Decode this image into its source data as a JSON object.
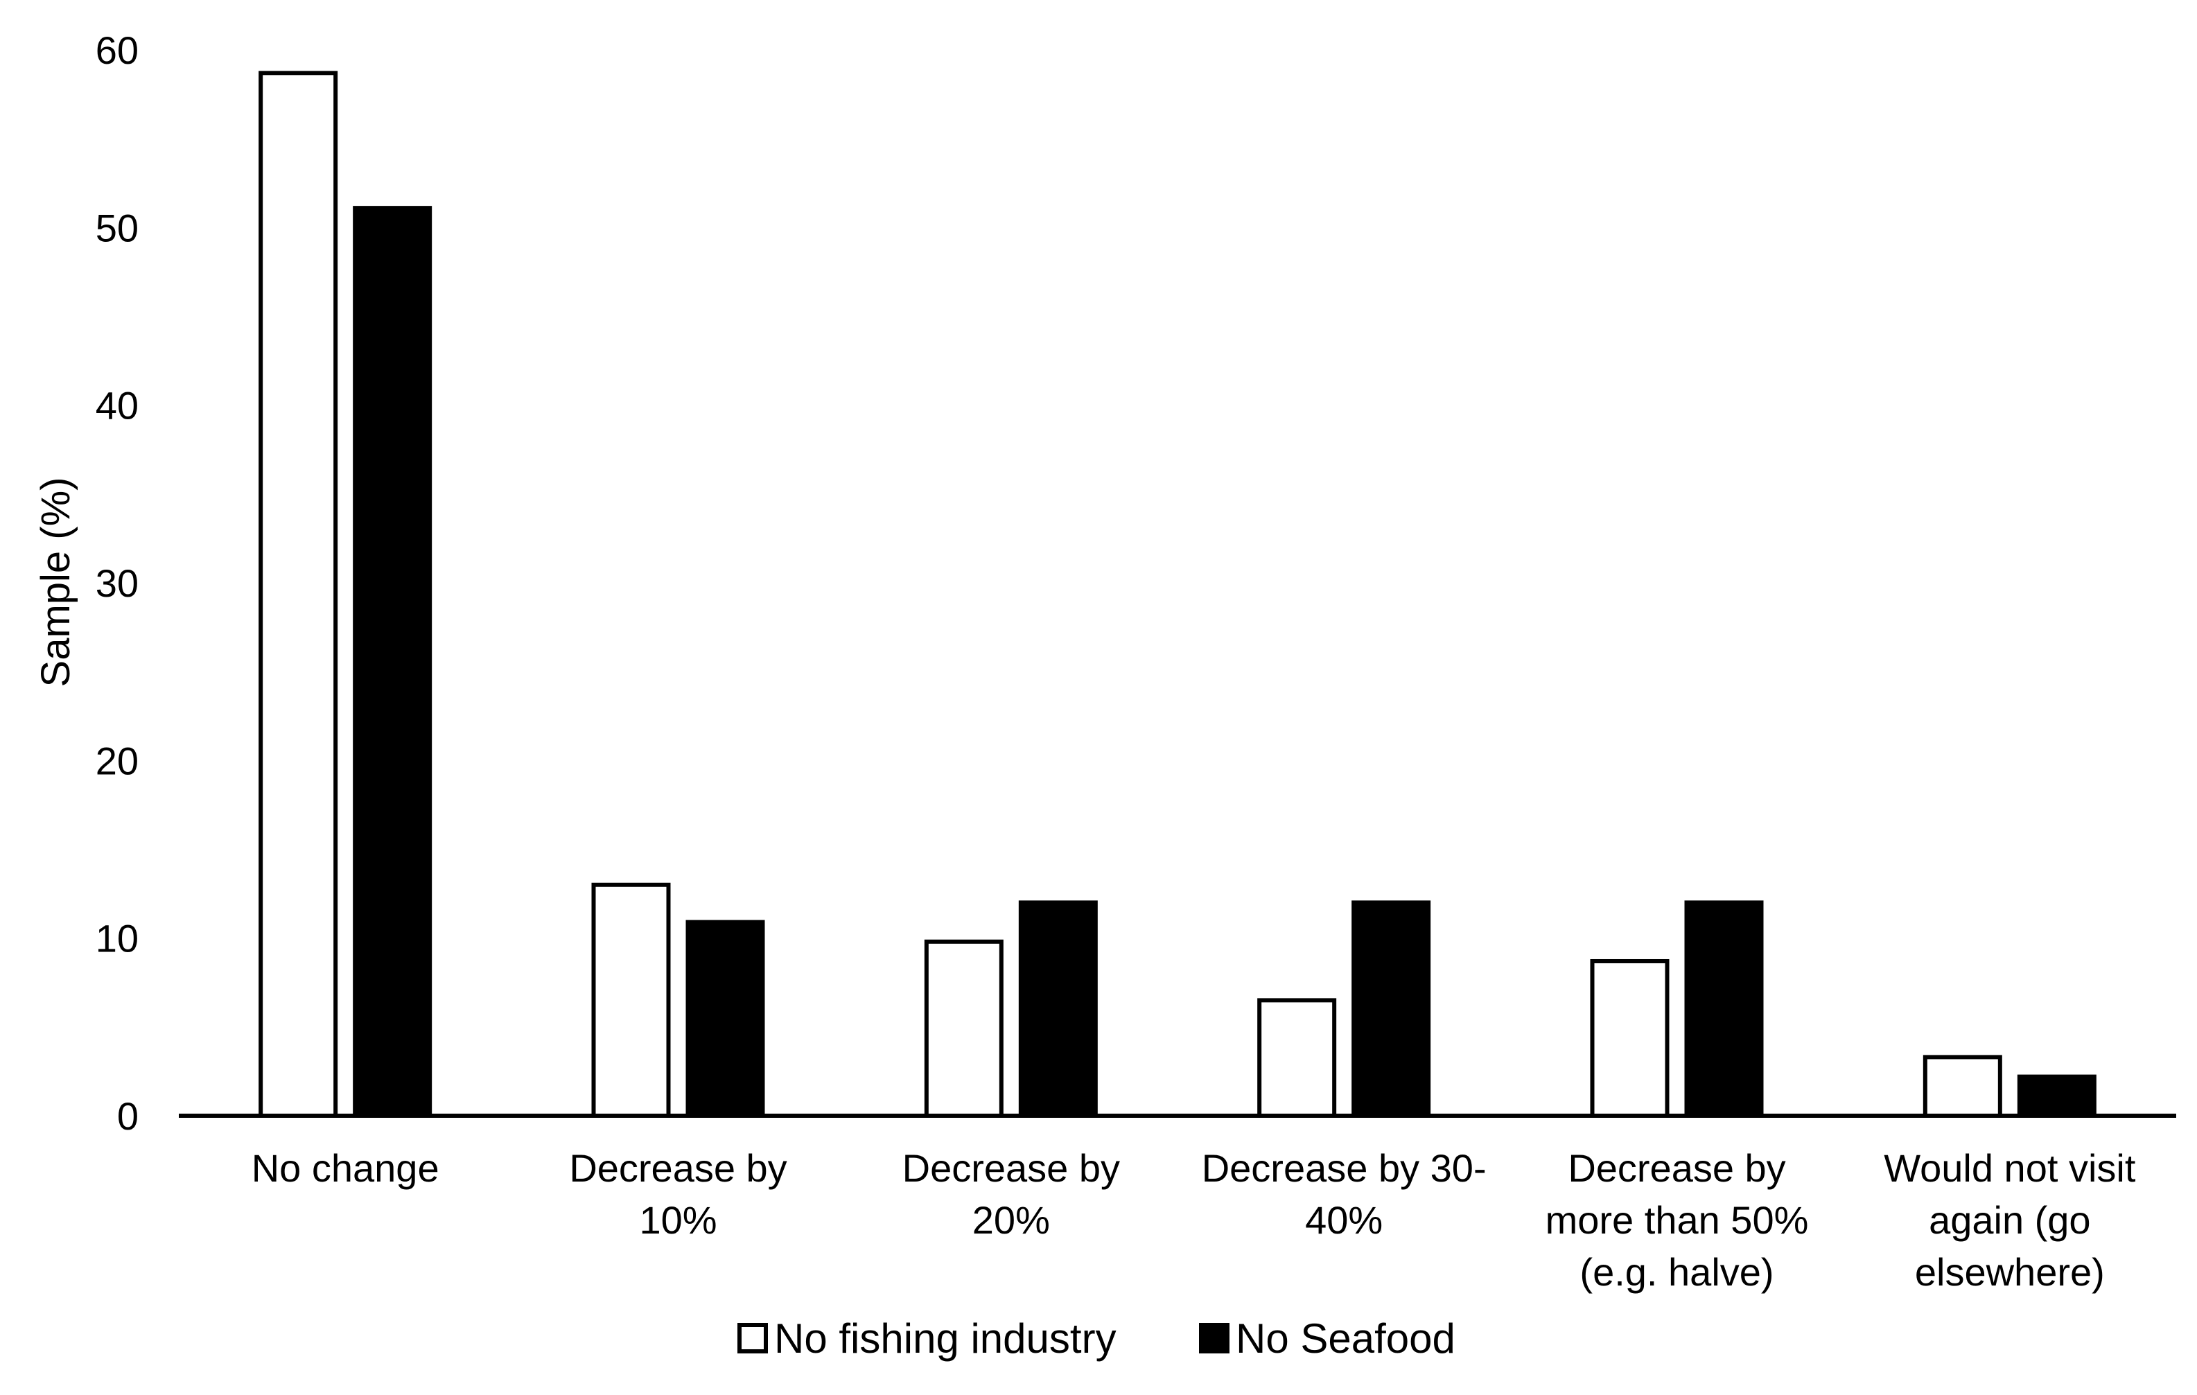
{
  "chart_data": {
    "type": "bar",
    "title": "",
    "xlabel": "",
    "ylabel": "Sample (%)",
    "ylim": [
      0,
      60
    ],
    "yticks": [
      0,
      10,
      20,
      30,
      40,
      50,
      60
    ],
    "grid": false,
    "legend_position": "bottom",
    "categories": [
      [
        "No change"
      ],
      [
        "Decrease by",
        "10%"
      ],
      [
        "Decrease by",
        "20%"
      ],
      [
        "Decrease by 30-",
        "40%"
      ],
      [
        "Decrease by",
        "more than 50%",
        "(e.g. halve)"
      ],
      [
        "Would not visit",
        "again (go",
        "elsewhere)"
      ]
    ],
    "series": [
      {
        "name": "No fishing industry",
        "fill": "#ffffff",
        "stroke": "#000000",
        "values": [
          58.7,
          13.0,
          9.8,
          6.5,
          8.7,
          3.3
        ]
      },
      {
        "name": "No Seafood",
        "fill": "#000000",
        "stroke": "#000000",
        "values": [
          51.1,
          10.9,
          12.0,
          12.0,
          12.0,
          2.2
        ]
      }
    ]
  }
}
